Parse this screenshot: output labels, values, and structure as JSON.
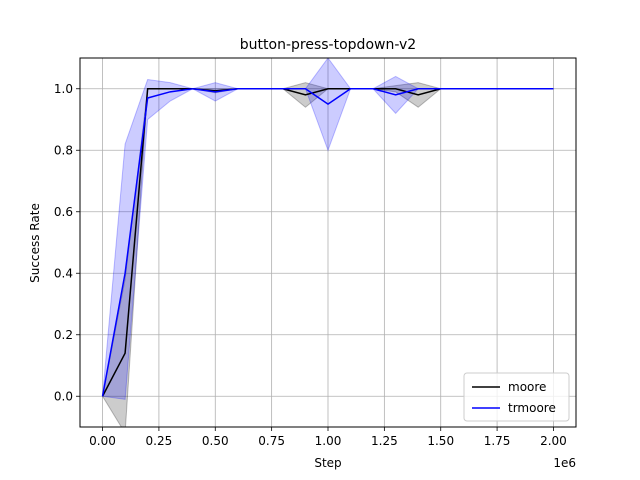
{
  "chart_data": {
    "type": "line",
    "title": "button-press-topdown-v2",
    "xlabel": "Step",
    "ylabel": "Success Rate",
    "x_offset_label": "1e6",
    "xlim": [
      -0.1,
      2.1
    ],
    "ylim": [
      -0.1,
      1.1
    ],
    "xticks": [
      0.0,
      0.25,
      0.5,
      0.75,
      1.0,
      1.25,
      1.5,
      1.75,
      2.0
    ],
    "xtick_labels": [
      "0.00",
      "0.25",
      "0.50",
      "0.75",
      "1.00",
      "1.25",
      "1.50",
      "1.75",
      "2.00"
    ],
    "yticks": [
      0.0,
      0.2,
      0.4,
      0.6,
      0.8,
      1.0
    ],
    "ytick_labels": [
      "0.0",
      "0.2",
      "0.4",
      "0.6",
      "0.8",
      "1.0"
    ],
    "grid": true,
    "legend_position": "lower-right",
    "x": [
      0.0,
      0.1,
      0.2,
      0.3,
      0.4,
      0.5,
      0.6,
      0.7,
      0.8,
      0.9,
      1.0,
      1.1,
      1.2,
      1.3,
      1.4,
      1.5,
      1.6,
      1.7,
      1.8,
      1.9,
      2.0
    ],
    "series": [
      {
        "name": "moore",
        "color": "#000000",
        "values": [
          0.0,
          0.14,
          1.0,
          1.0,
          1.0,
          0.993,
          1.0,
          1.0,
          1.0,
          0.98,
          1.0,
          1.0,
          1.0,
          1.0,
          0.98,
          1.0,
          1.0,
          1.0,
          1.0,
          1.0,
          1.0
        ],
        "lower": [
          0.0,
          -0.12,
          1.0,
          1.0,
          1.0,
          0.987,
          1.0,
          1.0,
          1.0,
          0.94,
          1.0,
          1.0,
          1.0,
          0.99,
          0.94,
          1.0,
          1.0,
          1.0,
          1.0,
          1.0,
          1.0
        ],
        "upper": [
          0.0,
          0.38,
          1.0,
          1.0,
          1.0,
          1.0,
          1.0,
          1.0,
          1.0,
          1.02,
          1.0,
          1.0,
          1.0,
          1.01,
          1.02,
          1.0,
          1.0,
          1.0,
          1.0,
          1.0,
          1.0
        ]
      },
      {
        "name": "trmoore",
        "color": "#0000ff",
        "values": [
          0.0,
          0.4,
          0.97,
          0.99,
          1.0,
          0.99,
          1.0,
          1.0,
          1.0,
          1.0,
          0.95,
          1.0,
          1.0,
          0.98,
          1.0,
          1.0,
          1.0,
          1.0,
          1.0,
          1.0,
          1.0
        ],
        "lower": [
          0.0,
          -0.01,
          0.9,
          0.96,
          1.0,
          0.96,
          1.0,
          1.0,
          1.0,
          1.0,
          0.8,
          1.0,
          1.0,
          0.92,
          1.0,
          1.0,
          1.0,
          1.0,
          1.0,
          1.0,
          1.0
        ],
        "upper": [
          0.0,
          0.82,
          1.03,
          1.02,
          1.0,
          1.02,
          1.0,
          1.0,
          1.0,
          1.0,
          1.1,
          1.0,
          1.0,
          1.04,
          1.0,
          1.0,
          1.0,
          1.0,
          1.0,
          1.0,
          1.0
        ]
      }
    ]
  }
}
